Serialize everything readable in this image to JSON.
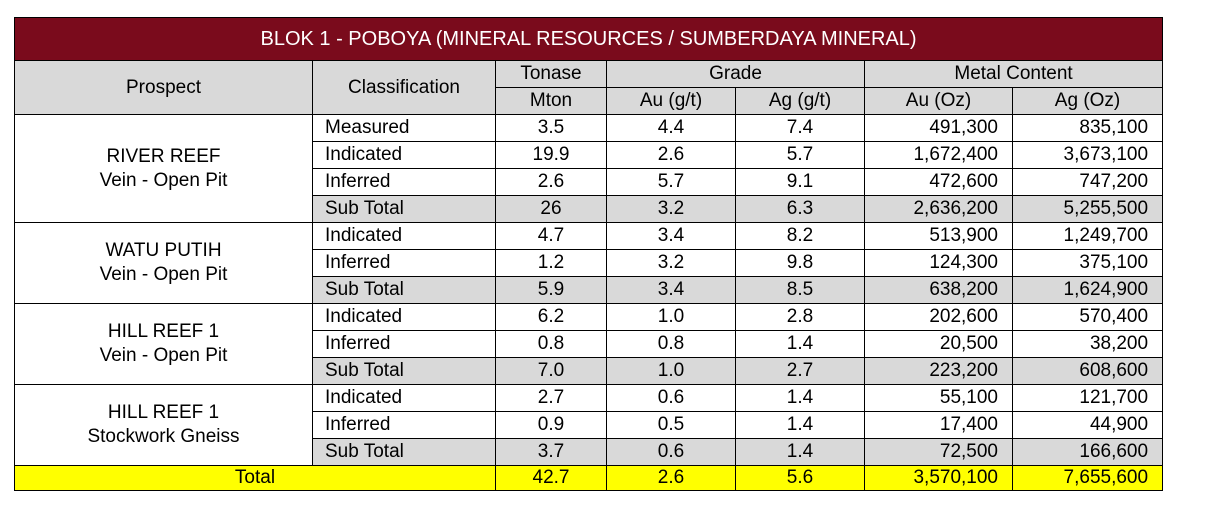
{
  "title": "BLOK 1 - POBOYA (MINERAL RESOURCES / SUMBERDAYA MINERAL)",
  "headers": {
    "prospect": "Prospect",
    "classification": "Classification",
    "tonase": "Tonase",
    "tonase_unit": "Mton",
    "grade": "Grade",
    "grade_au": "Au (g/t)",
    "grade_ag": "Ag (g/t)",
    "metal": "Metal Content",
    "metal_au": "Au (Oz)",
    "metal_ag": "Ag (Oz)"
  },
  "groups": [
    {
      "name": "RIVER REEF",
      "type": "Vein - Open Pit",
      "rows": [
        {
          "cls": "Measured",
          "ton": "3.5",
          "au": "4.4",
          "ag": "7.4",
          "au_oz": "491,300",
          "ag_oz": "835,100"
        },
        {
          "cls": "Indicated",
          "ton": "19.9",
          "au": "2.6",
          "ag": "5.7",
          "au_oz": "1,672,400",
          "ag_oz": "3,673,100"
        },
        {
          "cls": "Inferred",
          "ton": "2.6",
          "au": "5.7",
          "ag": "9.1",
          "au_oz": "472,600",
          "ag_oz": "747,200"
        },
        {
          "cls": "Sub Total",
          "ton": "26",
          "au": "3.2",
          "ag": "6.3",
          "au_oz": "2,636,200",
          "ag_oz": "5,255,500"
        }
      ]
    },
    {
      "name": "WATU PUTIH",
      "type": "Vein - Open Pit",
      "rows": [
        {
          "cls": "Indicated",
          "ton": "4.7",
          "au": "3.4",
          "ag": "8.2",
          "au_oz": "513,900",
          "ag_oz": "1,249,700"
        },
        {
          "cls": "Inferred",
          "ton": "1.2",
          "au": "3.2",
          "ag": "9.8",
          "au_oz": "124,300",
          "ag_oz": "375,100"
        },
        {
          "cls": "Sub Total",
          "ton": "5.9",
          "au": "3.4",
          "ag": "8.5",
          "au_oz": "638,200",
          "ag_oz": "1,624,900"
        }
      ]
    },
    {
      "name": "HILL REEF 1",
      "type": "Vein - Open Pit",
      "rows": [
        {
          "cls": "Indicated",
          "ton": "6.2",
          "au": "1.0",
          "ag": "2.8",
          "au_oz": "202,600",
          "ag_oz": "570,400"
        },
        {
          "cls": "Inferred",
          "ton": "0.8",
          "au": "0.8",
          "ag": "1.4",
          "au_oz": "20,500",
          "ag_oz": "38,200"
        },
        {
          "cls": "Sub Total",
          "ton": "7.0",
          "au": "1.0",
          "ag": "2.7",
          "au_oz": "223,200",
          "ag_oz": "608,600"
        }
      ]
    },
    {
      "name": "HILL REEF 1",
      "type": "Stockwork Gneiss",
      "rows": [
        {
          "cls": "Indicated",
          "ton": "2.7",
          "au": "0.6",
          "ag": "1.4",
          "au_oz": "55,100",
          "ag_oz": "121,700"
        },
        {
          "cls": "Inferred",
          "ton": "0.9",
          "au": "0.5",
          "ag": "1.4",
          "au_oz": "17,400",
          "ag_oz": "44,900"
        },
        {
          "cls": "Sub Total",
          "ton": "3.7",
          "au": "0.6",
          "ag": "1.4",
          "au_oz": "72,500",
          "ag_oz": "166,600"
        }
      ]
    }
  ],
  "total": {
    "label": "Total",
    "ton": "42.7",
    "au": "2.6",
    "ag": "5.6",
    "au_oz": "3,570,100",
    "ag_oz": "7,655,600"
  },
  "colors": {
    "title_bg": "#7a0b1c",
    "header_bg": "#d9d9d9",
    "total_bg": "#ffff00"
  }
}
